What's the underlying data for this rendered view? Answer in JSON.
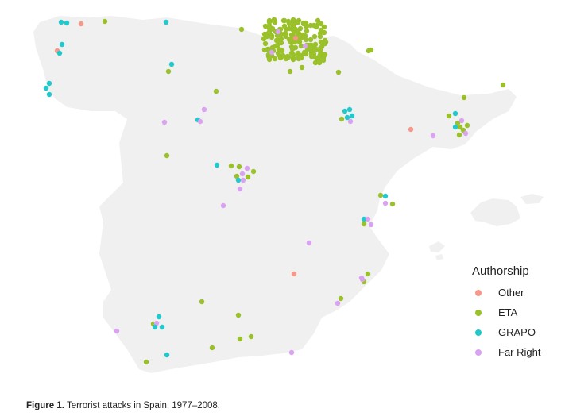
{
  "legend": {
    "title": "Authorship",
    "items": [
      {
        "label": "Other",
        "color": "#f5988a"
      },
      {
        "label": "ETA",
        "color": "#9ac12a"
      },
      {
        "label": "GRAPO",
        "color": "#22c9cc"
      },
      {
        "label": "Far Right",
        "color": "#d9a3f2"
      }
    ]
  },
  "caption": {
    "label": "Figure 1.",
    "text": "Terrorist attacks in Spain, 1977–2008."
  },
  "map": {
    "land_color": "#f0f0f0",
    "background": "#ffffff"
  }
}
